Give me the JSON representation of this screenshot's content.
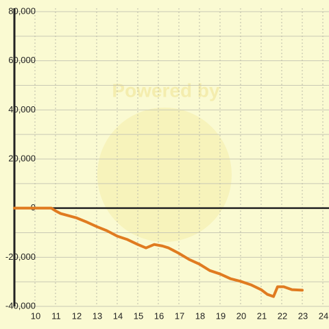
{
  "chart_data": {
    "type": "line",
    "watermark": "Powered by",
    "x": [
      9,
      10,
      10.8,
      11,
      11.25,
      12,
      12.5,
      13,
      13.5,
      14,
      14.5,
      15,
      15.4,
      15.8,
      16.2,
      16.5,
      17,
      17.5,
      18,
      18.5,
      19,
      19.5,
      20,
      20.5,
      21,
      21.3,
      21.6,
      21.8,
      22.1,
      22.5,
      23
    ],
    "series": [
      {
        "color": "#e07b20",
        "values": [
          0,
          0,
          0,
          -1100,
          -2200,
          -3900,
          -5600,
          -7500,
          -9200,
          -11400,
          -12800,
          -14800,
          -16200,
          -14800,
          -15400,
          -16200,
          -18400,
          -20900,
          -22800,
          -25400,
          -26800,
          -28700,
          -29800,
          -31200,
          -33200,
          -35100,
          -36000,
          -32000,
          -32000,
          -33200,
          -33400
        ]
      }
    ],
    "xlim": [
      9,
      24.3
    ],
    "xticks": [
      10,
      11,
      12,
      13,
      14,
      15,
      16,
      17,
      18,
      19,
      20,
      21,
      22,
      23,
      24
    ],
    "ylim": [
      -40000,
      80000
    ],
    "yticks": [
      {
        "value": -40000,
        "label": "-40,000"
      },
      {
        "value": -20000,
        "label": "-20,000"
      },
      0,
      {
        "value": 20000,
        "label": "20,000"
      },
      {
        "value": 40000,
        "label": "40,000"
      },
      {
        "value": 60000,
        "label": "60,000"
      },
      {
        "value": 80000,
        "label": "80,000"
      }
    ],
    "minor_yticks": [
      -30000,
      -10000,
      10000,
      30000,
      50000,
      70000
    ],
    "grid": true
  }
}
